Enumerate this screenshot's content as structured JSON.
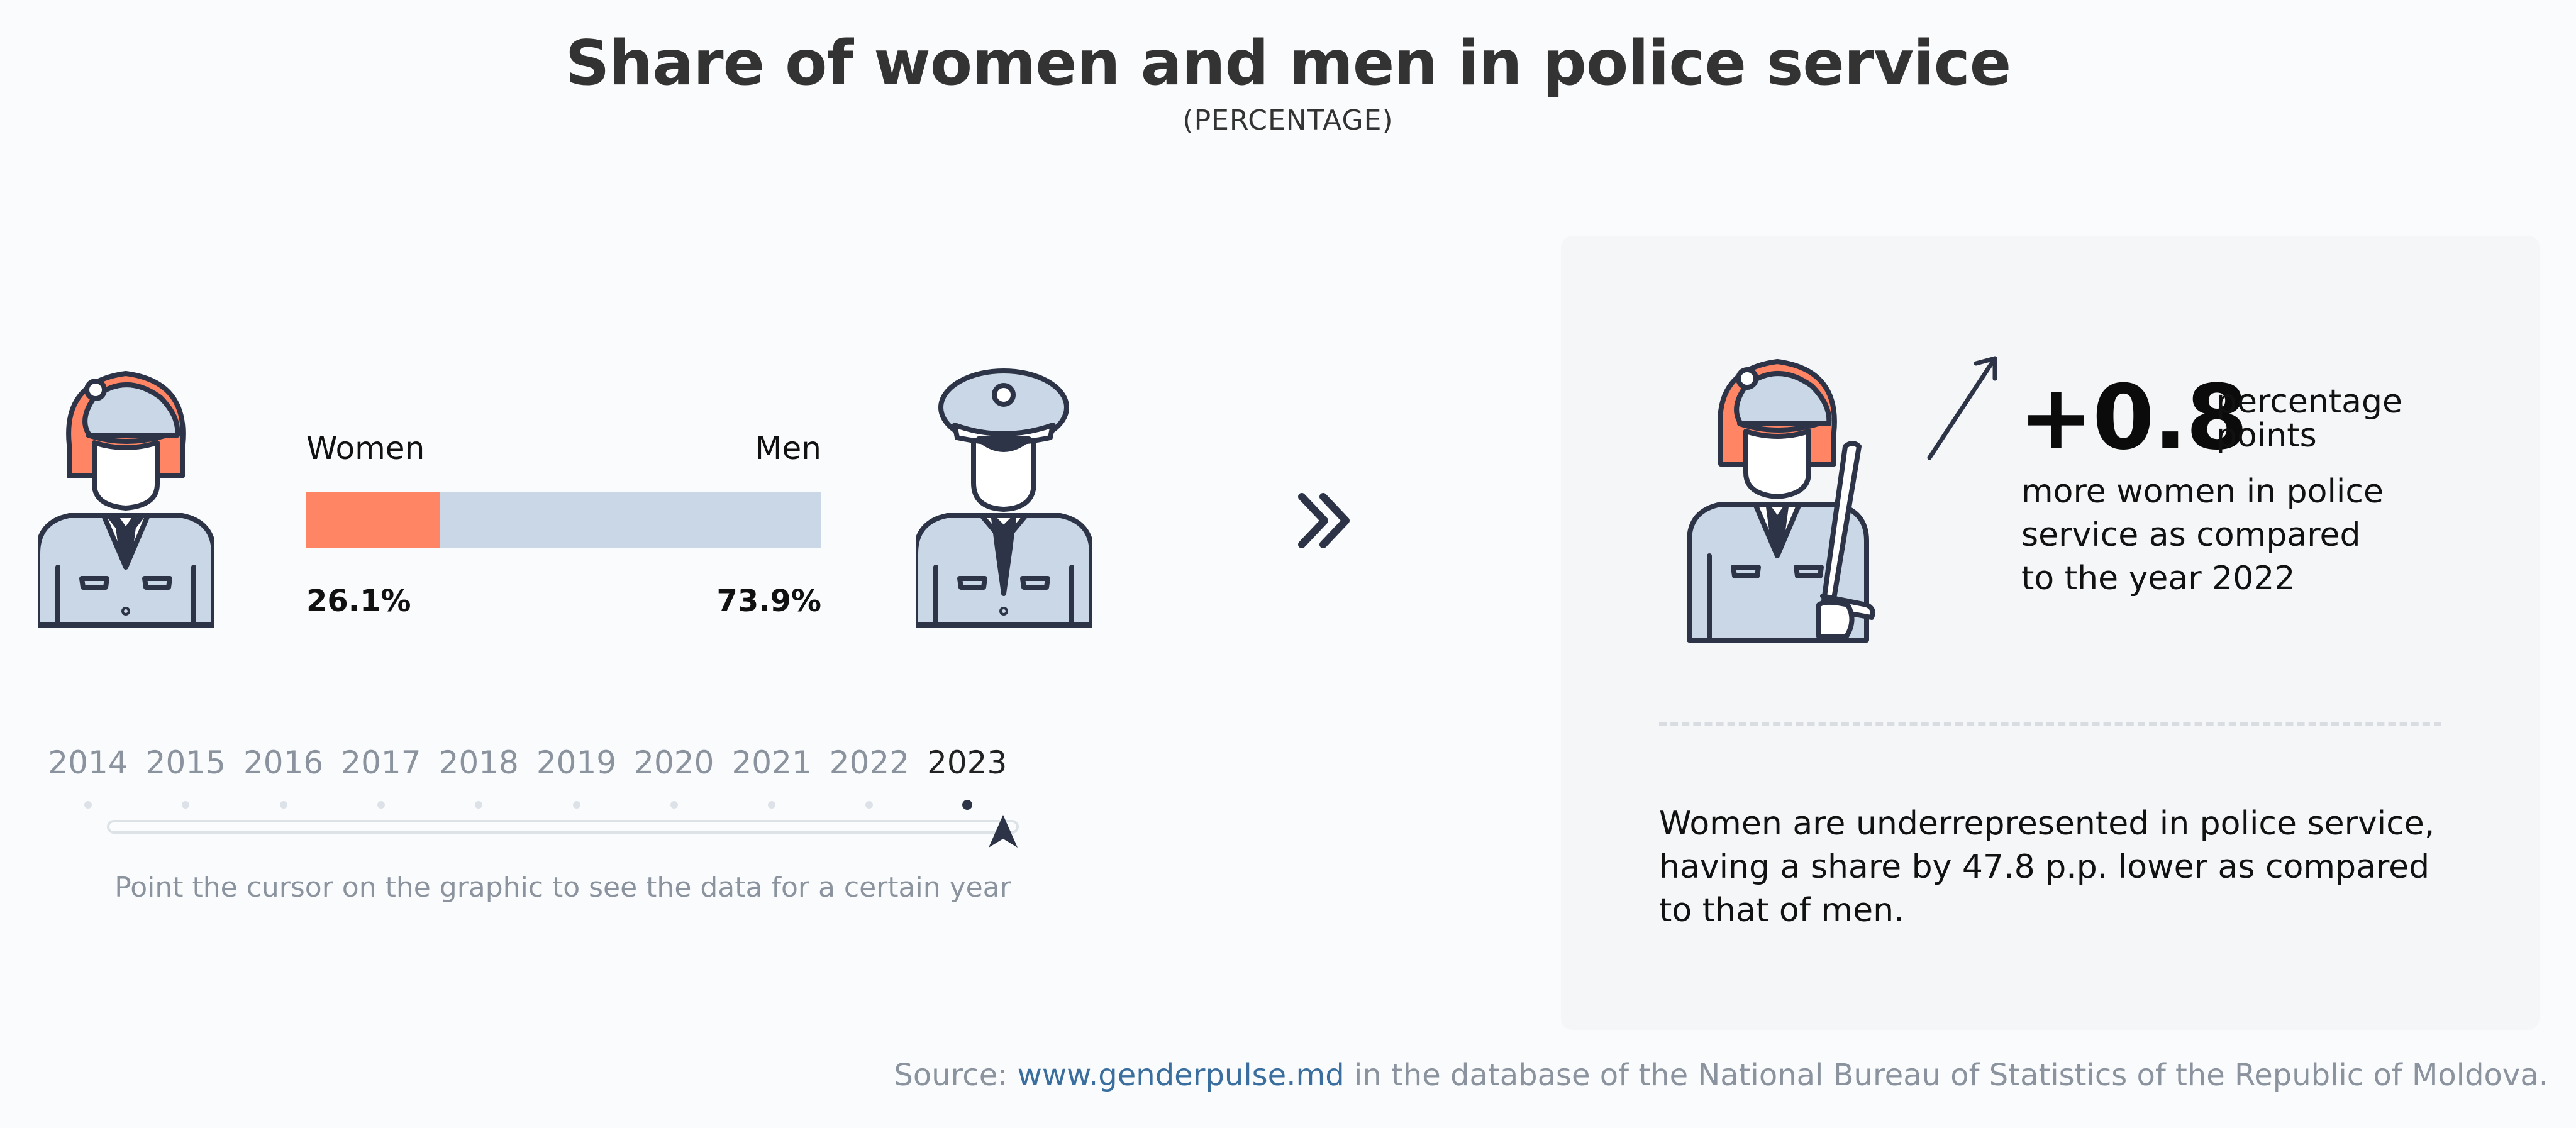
{
  "title": "Share of women and men in police service",
  "subtitle": "(PERCENTAGE)",
  "chart_data": {
    "type": "bar",
    "orientation": "horizontal-stacked",
    "year": "2023",
    "categories": [
      "Women",
      "Men"
    ],
    "values": [
      26.1,
      73.9
    ],
    "value_labels": [
      "26.1%",
      "73.9%"
    ],
    "xlim": [
      0,
      100
    ],
    "colors": {
      "women": "#ff8565",
      "men": "#c9d7e6"
    }
  },
  "timeline": {
    "years": [
      "2014",
      "2015",
      "2016",
      "2017",
      "2018",
      "2019",
      "2020",
      "2021",
      "2022",
      "2023"
    ],
    "selected": "2023",
    "hint": "Point the cursor on the graphic to see the data for a certain year"
  },
  "panel": {
    "delta_value": "+0.8",
    "delta_unit": "percentage points",
    "delta_description": "more women in police service as compared to the year 2022",
    "note": "Women are underrepresented in police service, having a share by 47.8 p.p. lower as compared to that of men."
  },
  "source": {
    "prefix": "Source:",
    "link": "www.genderpulse.md",
    "suffix": "in the database of the National Bureau of Statistics of the Republic of Moldova."
  },
  "icons": {
    "woman": "policewoman-icon",
    "man": "policeman-icon",
    "next": "double-chevron-right-icon",
    "trend": "arrow-up-right-icon"
  },
  "colors": {
    "accent": "#ff8565",
    "uniform": "#c9d7e6",
    "outline": "#2d3447",
    "muted_text": "#8a939e",
    "link": "#3a6e9e"
  }
}
